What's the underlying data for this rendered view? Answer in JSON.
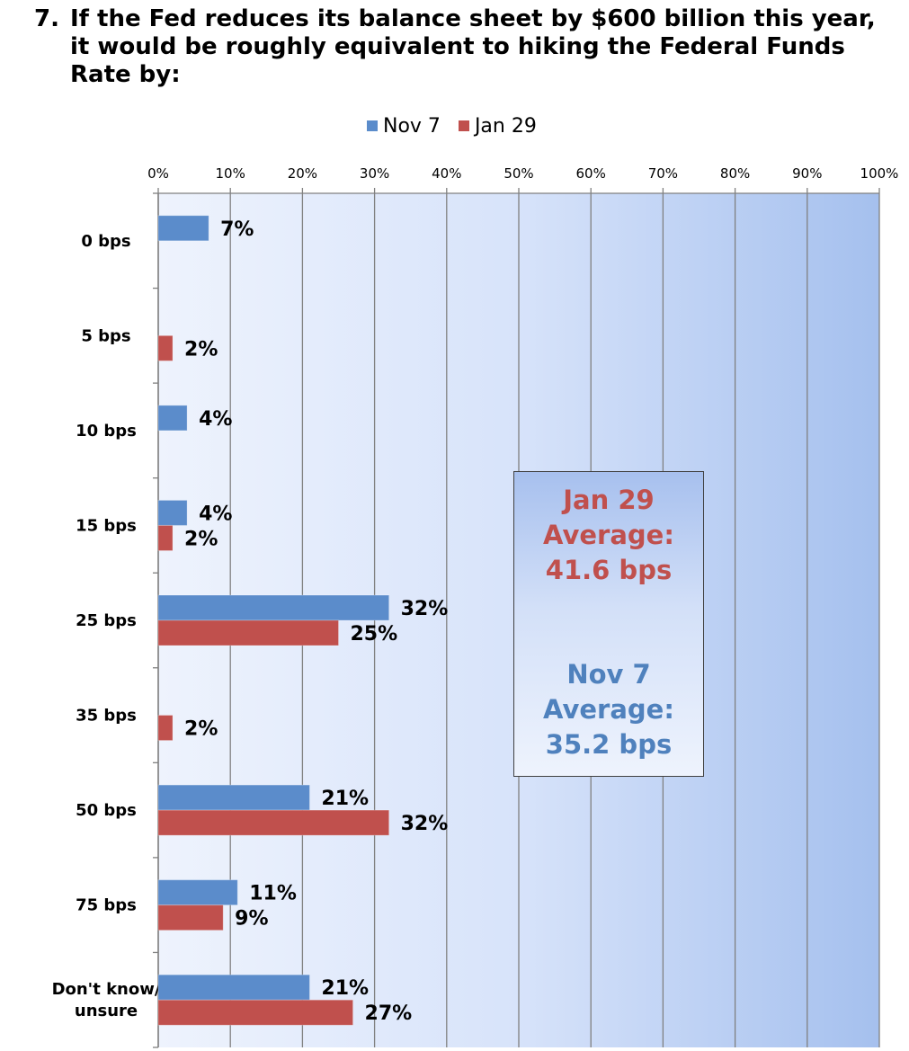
{
  "title": {
    "number": "7.",
    "text": "If the Fed reduces its balance sheet by $600 billion this year, it would be roughly equivalent to hiking the Federal Funds Rate by:"
  },
  "colors": {
    "nov7": "#5b8ccb",
    "jan29": "#c0504d",
    "nov7_text": "#4f81bd",
    "jan29_text": "#c0504d"
  },
  "average_box": {
    "jan29_lines": [
      "Jan 29",
      "Average:",
      "41.6 bps"
    ],
    "nov7_lines": [
      "Nov 7",
      "Average:",
      "35.2 bps"
    ]
  },
  "chart_data": {
    "type": "bar",
    "orientation": "horizontal",
    "categories": [
      "0 bps",
      "5 bps",
      "10 bps",
      "15 bps",
      "25 bps",
      "35 bps",
      "50 bps",
      "75 bps",
      "Don't know/\nunsure"
    ],
    "series": [
      {
        "name": "Nov 7",
        "values": [
          7,
          null,
          4,
          4,
          32,
          null,
          21,
          11,
          21
        ]
      },
      {
        "name": "Jan 29",
        "values": [
          null,
          2,
          null,
          2,
          25,
          2,
          32,
          9,
          27
        ]
      }
    ],
    "value_labels": {
      "Nov 7": [
        "7%",
        "",
        "4%",
        "4%",
        "32%",
        "",
        "21%",
        "11%",
        "21%"
      ],
      "Jan 29": [
        "",
        "2%",
        "",
        "2%",
        "25%",
        "2%",
        "32%",
        "9%",
        "27%"
      ]
    },
    "xlim": [
      0,
      100
    ],
    "xticks": [
      0,
      10,
      20,
      30,
      40,
      50,
      60,
      70,
      80,
      90,
      100
    ],
    "xtick_labels": [
      "0%",
      "10%",
      "20%",
      "30%",
      "40%",
      "50%",
      "60%",
      "70%",
      "80%",
      "90%",
      "100%"
    ],
    "x_axis_position": "top",
    "grid": true,
    "legend": "top"
  }
}
